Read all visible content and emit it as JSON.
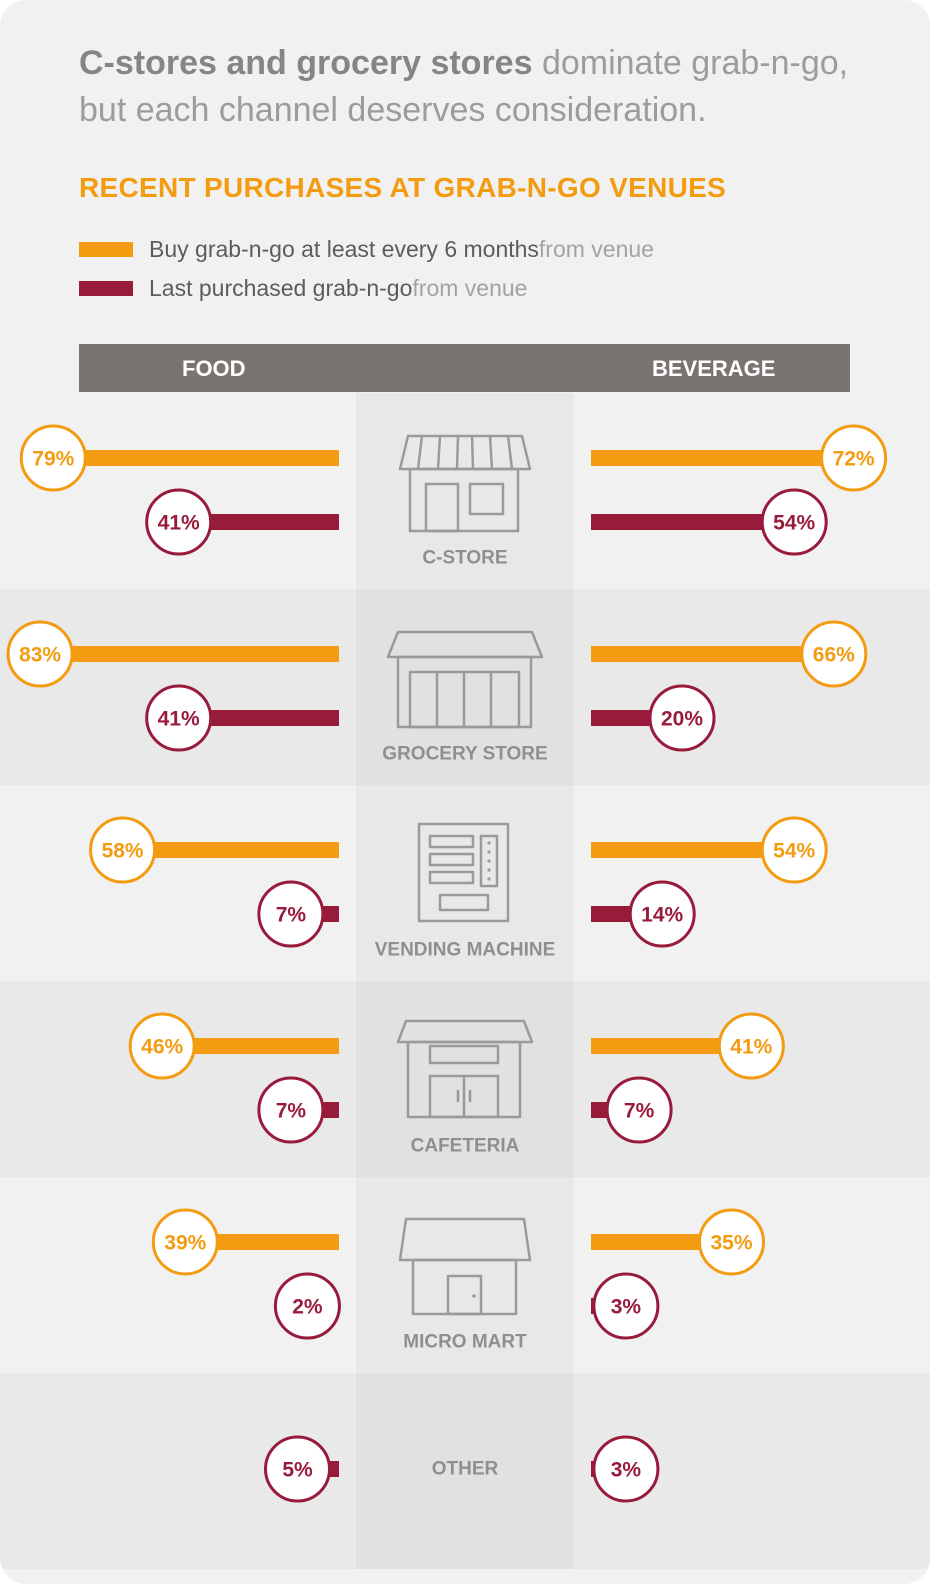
{
  "headline": {
    "bold": "C-stores and grocery stores",
    "rest": " dominate grab-n-go, but each channel deserves consideration."
  },
  "section_title": "RECENT PURCHASES AT GRAB-N-GO VENUES",
  "legend": [
    {
      "main": "Buy grab-n-go at least every 6 months",
      "sub": " from venue",
      "color": "#f39c12"
    },
    {
      "main": "Last purchased grab-n-go",
      "sub": " from venue",
      "color": "#981b3b"
    }
  ],
  "columns": {
    "left": "FOOD",
    "right": "BEVERAGE"
  },
  "colors": {
    "orange": "#f39c12",
    "maroon": "#981b3b",
    "icon_gray": "#9a9a9a",
    "row_light": "#f1f1f1",
    "row_dark": "#e9e9e9"
  },
  "chart_data": {
    "type": "bar",
    "categories": [
      "C-STORE",
      "GROCERY STORE",
      "VENDING MACHINE",
      "CAFETERIA",
      "MICRO MART",
      "OTHER"
    ],
    "icons": [
      "c-store-icon",
      "grocery-store-icon",
      "vending-machine-icon",
      "cafeteria-icon",
      "micro-mart-icon",
      null
    ],
    "panels": [
      "FOOD",
      "BEVERAGE"
    ],
    "series": [
      {
        "name": "Buy grab-n-go at least every 6 months from venue",
        "food": [
          79,
          83,
          58,
          46,
          39,
          null
        ],
        "beverage": [
          72,
          66,
          54,
          41,
          35,
          null
        ]
      },
      {
        "name": "Last purchased grab-n-go from venue",
        "food": [
          41,
          41,
          7,
          7,
          2,
          5
        ],
        "beverage": [
          54,
          20,
          14,
          7,
          3,
          3
        ]
      }
    ],
    "unit": "%",
    "ylim": [
      0,
      100
    ]
  }
}
